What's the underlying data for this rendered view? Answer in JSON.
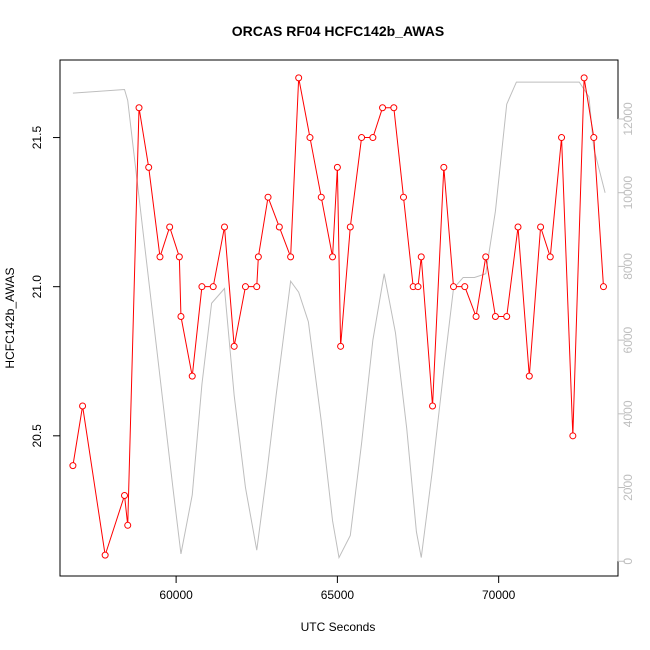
{
  "chart_data": {
    "type": "line",
    "title": "ORCAS RF04 HCFC142b_AWAS",
    "xlabel": "UTC Seconds",
    "ylabel": "HCFC142b_AWAS",
    "xlim": [
      56400,
      73700
    ],
    "ylim": [
      20.03,
      21.76
    ],
    "x_ticks": [
      60000,
      65000,
      70000
    ],
    "x_tick_labels": [
      "60000",
      "65000",
      "70000"
    ],
    "y_ticks": [
      20.5,
      21.0,
      21.5
    ],
    "y_tick_labels": [
      "20.5",
      "21.0",
      "21.5"
    ],
    "y2_lim": [
      -400,
      13600
    ],
    "y2_ticks": [
      0,
      2000,
      4000,
      6000,
      8000,
      10000,
      12000
    ],
    "y2_tick_labels": [
      "0",
      "2000",
      "4000",
      "6000",
      "8000",
      "10000",
      "12000"
    ],
    "grid": false,
    "colors": {
      "primary": "#ff0000",
      "secondary": "#bebebe",
      "axis": "#000000"
    },
    "series": [
      {
        "color": "#ff0000",
        "marker": "open-circle",
        "x": [
          56800,
          57100,
          57800,
          58400,
          58500,
          58850,
          59150,
          59500,
          59800,
          60100,
          60150,
          60500,
          60800,
          61150,
          61500,
          61800,
          62150,
          62500,
          62550,
          62850,
          63200,
          63550,
          63800,
          64150,
          64500,
          64850,
          65000,
          65100,
          65400,
          65750,
          66100,
          66400,
          66750,
          67050,
          67350,
          67500,
          67600,
          67950,
          68300,
          68600,
          68950,
          69300,
          69600,
          69900,
          70250,
          70600,
          70950,
          71300,
          71600,
          71950,
          72300,
          72650,
          72950,
          73250
        ],
        "y": [
          20.4,
          20.6,
          20.1,
          20.3,
          20.2,
          21.6,
          21.4,
          21.1,
          21.2,
          21.1,
          20.9,
          20.7,
          21.0,
          21.0,
          21.2,
          20.8,
          21.0,
          21.0,
          21.1,
          21.3,
          21.2,
          21.1,
          21.7,
          21.5,
          21.3,
          21.1,
          21.4,
          20.8,
          21.2,
          21.5,
          21.5,
          21.6,
          21.6,
          21.3,
          21.0,
          21.0,
          21.1,
          20.6,
          21.4,
          21.0,
          21.0,
          20.9,
          21.1,
          20.9,
          20.9,
          21.2,
          20.7,
          21.2,
          21.1,
          21.5,
          20.5,
          21.7,
          21.5,
          21.0
        ]
      },
      {
        "color": "#bebebe",
        "marker": "none",
        "axis": "right",
        "x": [
          56800,
          58400,
          58500,
          58700,
          59100,
          59500,
          59900,
          60150,
          60500,
          60800,
          61100,
          61500,
          61800,
          62150,
          62500,
          62800,
          63100,
          63550,
          63800,
          64100,
          64500,
          64850,
          65050,
          65400,
          65750,
          66100,
          66450,
          66800,
          67150,
          67450,
          67600,
          67950,
          68300,
          68600,
          68900,
          69250,
          69600,
          69900,
          70250,
          70550,
          71000,
          71500,
          72000,
          72500,
          72800,
          72950,
          73300
        ],
        "y": [
          12700,
          12800,
          12500,
          11000,
          8000,
          5000,
          2000,
          200,
          1800,
          4800,
          7000,
          7400,
          4500,
          2000,
          300,
          2300,
          4500,
          7600,
          7300,
          6500,
          3800,
          1100,
          100,
          700,
          3200,
          6000,
          7800,
          6200,
          3600,
          800,
          100,
          2500,
          5200,
          7400,
          7700,
          7700,
          7800,
          9500,
          12400,
          13000,
          13000,
          13000,
          13000,
          13000,
          12600,
          11200,
          10000
        ]
      }
    ]
  }
}
